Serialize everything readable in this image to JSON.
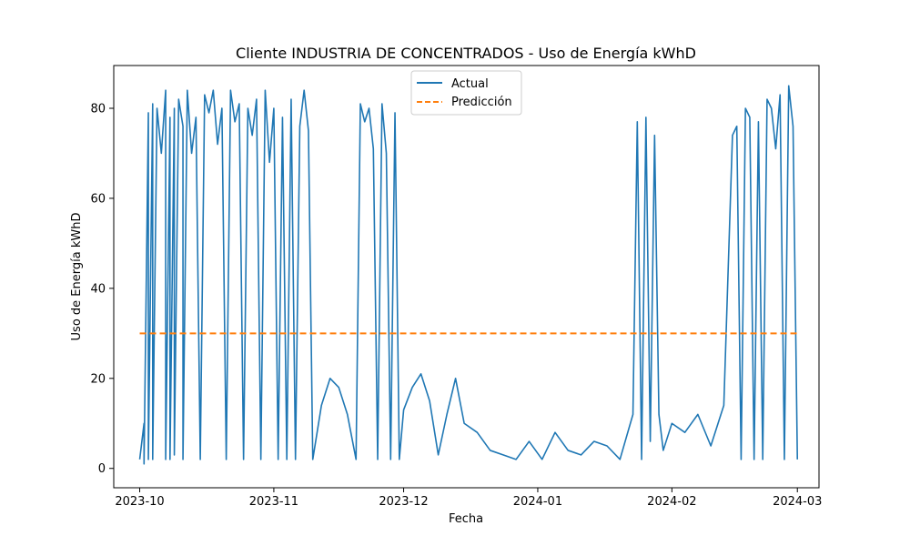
{
  "chart_data": {
    "type": "line",
    "title": "Cliente INDUSTRIA DE CONCENTRADOS - Uso de Energía kWhD",
    "xlabel": "Fecha",
    "ylabel": "Uso de Energía kWhD",
    "x_range": [
      "2023-09-25",
      "2024-03-06"
    ],
    "ylim": [
      -4.3,
      89.5
    ],
    "x_ticks": [
      {
        "date": "2023-10-01",
        "label": "2023-10"
      },
      {
        "date": "2023-11-01",
        "label": "2023-11"
      },
      {
        "date": "2023-12-01",
        "label": "2023-12"
      },
      {
        "date": "2024-01-01",
        "label": "2024-01"
      },
      {
        "date": "2024-02-01",
        "label": "2024-02"
      },
      {
        "date": "2024-03-01",
        "label": "2024-03"
      }
    ],
    "y_ticks": [
      0,
      20,
      40,
      60,
      80
    ],
    "grid": false,
    "legend_position": "upper center",
    "series": [
      {
        "name": "Actual",
        "color": "#1f77b4",
        "style": "solid",
        "x": [
          "2023-10-01",
          "2023-10-02",
          "2023-10-02",
          "2023-10-03",
          "2023-10-03",
          "2023-10-04",
          "2023-10-04",
          "2023-10-04",
          "2023-10-05",
          "2023-10-06",
          "2023-10-07",
          "2023-10-07",
          "2023-10-08",
          "2023-10-08",
          "2023-10-09",
          "2023-10-09",
          "2023-10-10",
          "2023-10-11",
          "2023-10-11",
          "2023-10-12",
          "2023-10-13",
          "2023-10-14",
          "2023-10-15",
          "2023-10-16",
          "2023-10-17",
          "2023-10-18",
          "2023-10-19",
          "2023-10-20",
          "2023-10-21",
          "2023-10-22",
          "2023-10-23",
          "2023-10-24",
          "2023-10-25",
          "2023-10-26",
          "2023-10-27",
          "2023-10-28",
          "2023-10-29",
          "2023-10-30",
          "2023-10-31",
          "2023-11-01",
          "2023-11-02",
          "2023-11-03",
          "2023-11-04",
          "2023-11-05",
          "2023-11-06",
          "2023-11-07",
          "2023-11-08",
          "2023-11-09",
          "2023-11-10",
          "2023-11-12",
          "2023-11-14",
          "2023-11-16",
          "2023-11-18",
          "2023-11-20",
          "2023-11-21",
          "2023-11-22",
          "2023-11-23",
          "2023-11-24",
          "2023-11-25",
          "2023-11-26",
          "2023-11-27",
          "2023-11-28",
          "2023-11-29",
          "2023-11-30",
          "2023-12-01",
          "2023-12-03",
          "2023-12-05",
          "2023-12-07",
          "2023-12-09",
          "2023-12-11",
          "2023-12-13",
          "2023-12-15",
          "2023-12-18",
          "2023-12-21",
          "2023-12-24",
          "2023-12-27",
          "2023-12-30",
          "2024-01-02",
          "2024-01-05",
          "2024-01-08",
          "2024-01-11",
          "2024-01-14",
          "2024-01-17",
          "2024-01-20",
          "2024-01-23",
          "2024-01-24",
          "2024-01-25",
          "2024-01-26",
          "2024-01-27",
          "2024-01-28",
          "2024-01-29",
          "2024-01-30",
          "2024-02-01",
          "2024-02-04",
          "2024-02-07",
          "2024-02-10",
          "2024-02-13",
          "2024-02-15",
          "2024-02-16",
          "2024-02-17",
          "2024-02-18",
          "2024-02-19",
          "2024-02-20",
          "2024-02-21",
          "2024-02-22",
          "2024-02-23",
          "2024-02-24",
          "2024-02-25",
          "2024-02-26",
          "2024-02-27",
          "2024-02-28",
          "2024-02-29",
          "2024-03-01"
        ],
        "y": [
          2,
          10,
          1,
          79,
          2,
          81,
          75,
          2,
          80,
          70,
          84,
          2,
          78,
          2,
          80,
          3,
          82,
          76,
          2,
          84,
          70,
          78,
          2,
          83,
          79,
          84,
          72,
          80,
          2,
          84,
          77,
          81,
          2,
          80,
          74,
          82,
          2,
          84,
          68,
          80,
          2,
          78,
          2,
          82,
          2,
          76,
          84,
          75,
          2,
          14,
          20,
          18,
          12,
          2,
          81,
          77,
          80,
          71,
          2,
          81,
          70,
          2,
          79,
          2,
          13,
          18,
          21,
          15,
          3,
          12,
          20,
          10,
          8,
          4,
          3,
          2,
          6,
          2,
          8,
          4,
          3,
          6,
          5,
          2,
          12,
          77,
          2,
          78,
          6,
          74,
          12,
          4,
          10,
          8,
          12,
          5,
          14,
          74,
          76,
          2,
          80,
          78,
          2,
          77,
          2,
          82,
          80,
          71,
          83,
          2,
          85,
          76,
          2
        ]
      },
      {
        "name": "Predicción",
        "color": "#ff7f0e",
        "style": "dashed",
        "x": [
          "2023-10-01",
          "2024-03-01"
        ],
        "y": [
          30,
          30
        ]
      }
    ]
  }
}
